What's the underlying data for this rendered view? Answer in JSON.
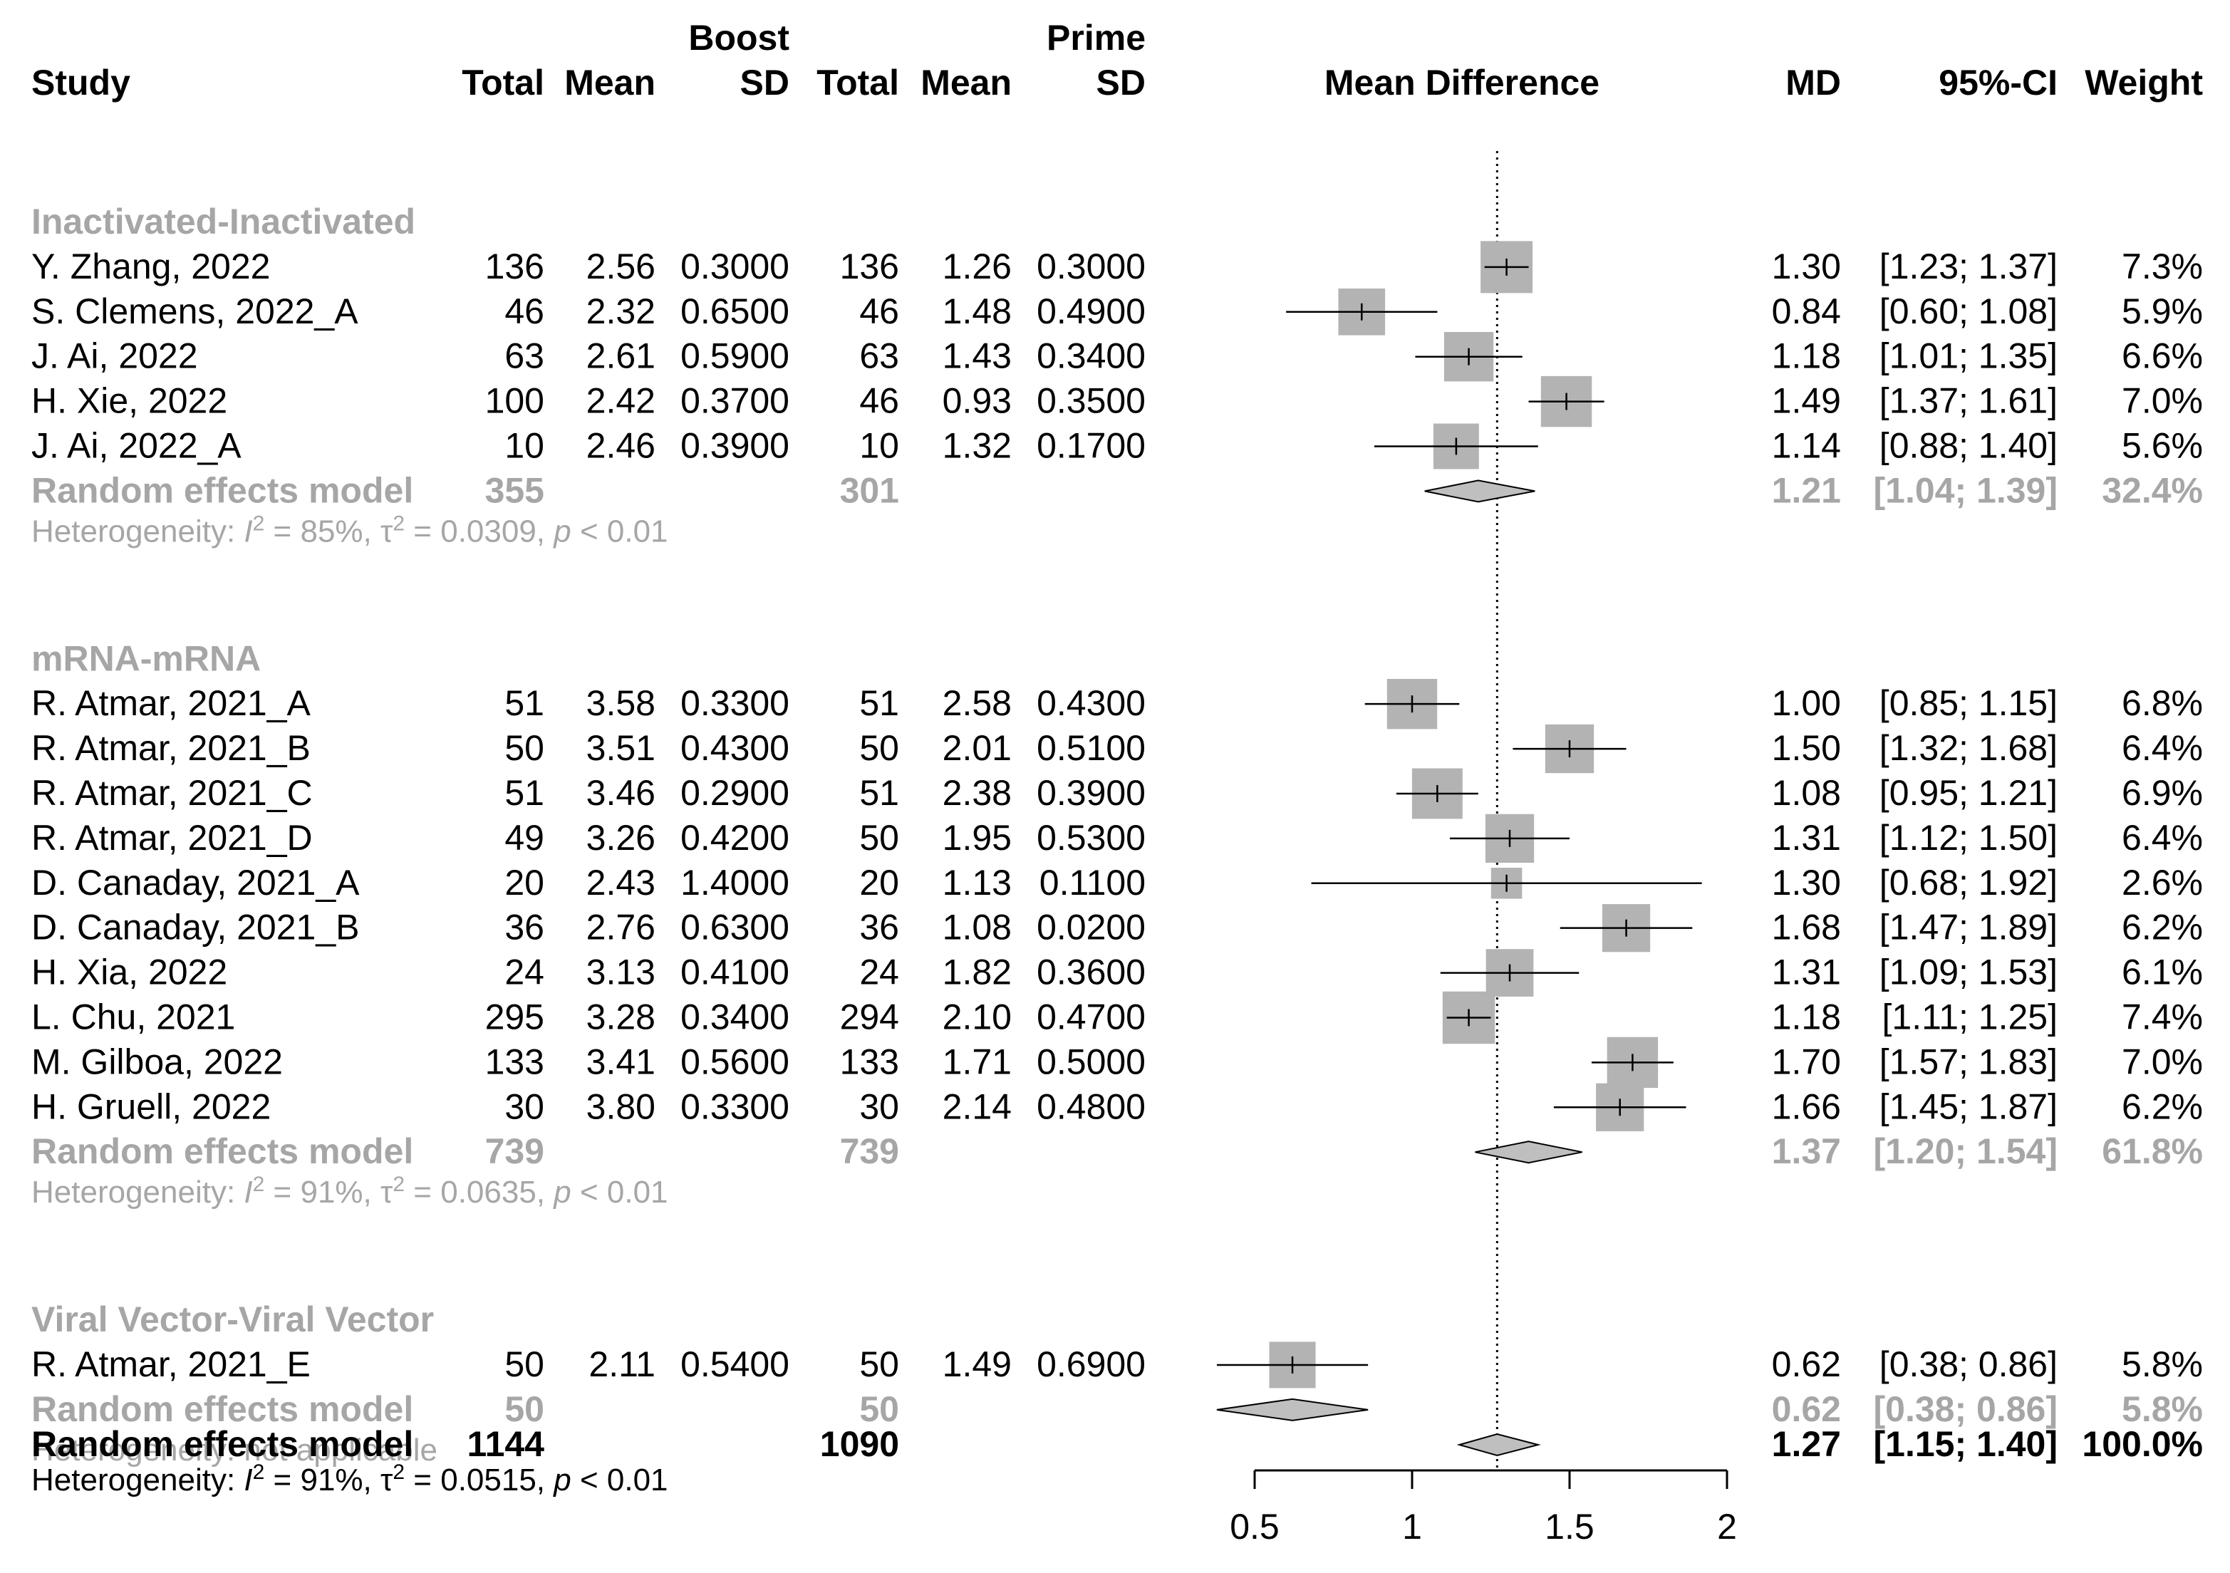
{
  "chart_data": {
    "type": "forest",
    "xlabel": "Mean Difference",
    "xlim": [
      0.5,
      2
    ],
    "xticks": [
      "0.5",
      "1",
      "1.5",
      "2"
    ],
    "reference_line": 1.27,
    "header": {
      "study": "Study",
      "group1_title": "Boost",
      "group2_title": "Prime",
      "total": "Total",
      "mean": "Mean",
      "sd": "SD",
      "md": "MD",
      "ci": "95%-CI",
      "weight": "Weight"
    },
    "subgroups": [
      {
        "name": "Inactivated-Inactivated",
        "studies": [
          {
            "study": "Y. Zhang, 2022",
            "t1": "136",
            "m1": "2.56",
            "sd1": "0.3000",
            "t2": "136",
            "m2": "1.26",
            "sd2": "0.3000",
            "md": 1.3,
            "lo": 1.23,
            "hi": 1.37,
            "md_text": "1.30",
            "ci_text": "[1.23; 1.37]",
            "weight_text": "7.3%",
            "weight": 7.3
          },
          {
            "study": "S. Clemens, 2022_A",
            "t1": "46",
            "m1": "2.32",
            "sd1": "0.6500",
            "t2": "46",
            "m2": "1.48",
            "sd2": "0.4900",
            "md": 0.84,
            "lo": 0.6,
            "hi": 1.08,
            "md_text": "0.84",
            "ci_text": "[0.60; 1.08]",
            "weight_text": "5.9%",
            "weight": 5.9
          },
          {
            "study": "J. Ai, 2022",
            "t1": "63",
            "m1": "2.61",
            "sd1": "0.5900",
            "t2": "63",
            "m2": "1.43",
            "sd2": "0.3400",
            "md": 1.18,
            "lo": 1.01,
            "hi": 1.35,
            "md_text": "1.18",
            "ci_text": "[1.01; 1.35]",
            "weight_text": "6.6%",
            "weight": 6.6
          },
          {
            "study": "H. Xie, 2022",
            "t1": "100",
            "m1": "2.42",
            "sd1": "0.3700",
            "t2": "46",
            "m2": "0.93",
            "sd2": "0.3500",
            "md": 1.49,
            "lo": 1.37,
            "hi": 1.61,
            "md_text": "1.49",
            "ci_text": "[1.37; 1.61]",
            "weight_text": "7.0%",
            "weight": 7.0
          },
          {
            "study": "J. Ai, 2022_A",
            "t1": "10",
            "m1": "2.46",
            "sd1": "0.3900",
            "t2": "10",
            "m2": "1.32",
            "sd2": "0.1700",
            "md": 1.14,
            "lo": 0.88,
            "hi": 1.4,
            "md_text": "1.14",
            "ci_text": "[0.88; 1.40]",
            "weight_text": "5.6%",
            "weight": 5.6
          }
        ],
        "pooled": {
          "label": "Random effects model",
          "t1": "355",
          "t2": "301",
          "md": 1.21,
          "lo": 1.04,
          "hi": 1.39,
          "md_text": "1.21",
          "ci_text": "[1.04; 1.39]",
          "weight_text": "32.4%"
        },
        "heterogeneity": {
          "prefix": "Heterogeneity: ",
          "i2_label": "I",
          "i2_value": " = 85%, ",
          "tau_label": "τ",
          "tau_value": " = 0.0309, ",
          "p_label": "p",
          "p_value": " < 0.01"
        }
      },
      {
        "name": "mRNA-mRNA",
        "studies": [
          {
            "study": "R. Atmar, 2021_A",
            "t1": "51",
            "m1": "3.58",
            "sd1": "0.3300",
            "t2": "51",
            "m2": "2.58",
            "sd2": "0.4300",
            "md": 1.0,
            "lo": 0.85,
            "hi": 1.15,
            "md_text": "1.00",
            "ci_text": "[0.85; 1.15]",
            "weight_text": "6.8%",
            "weight": 6.8
          },
          {
            "study": "R. Atmar, 2021_B",
            "t1": "50",
            "m1": "3.51",
            "sd1": "0.4300",
            "t2": "50",
            "m2": "2.01",
            "sd2": "0.5100",
            "md": 1.5,
            "lo": 1.32,
            "hi": 1.68,
            "md_text": "1.50",
            "ci_text": "[1.32; 1.68]",
            "weight_text": "6.4%",
            "weight": 6.4
          },
          {
            "study": "R. Atmar, 2021_C",
            "t1": "51",
            "m1": "3.46",
            "sd1": "0.2900",
            "t2": "51",
            "m2": "2.38",
            "sd2": "0.3900",
            "md": 1.08,
            "lo": 0.95,
            "hi": 1.21,
            "md_text": "1.08",
            "ci_text": "[0.95; 1.21]",
            "weight_text": "6.9%",
            "weight": 6.9
          },
          {
            "study": "R. Atmar, 2021_D",
            "t1": "49",
            "m1": "3.26",
            "sd1": "0.4200",
            "t2": "50",
            "m2": "1.95",
            "sd2": "0.5300",
            "md": 1.31,
            "lo": 1.12,
            "hi": 1.5,
            "md_text": "1.31",
            "ci_text": "[1.12; 1.50]",
            "weight_text": "6.4%",
            "weight": 6.4
          },
          {
            "study": "D. Canaday, 2021_A",
            "t1": "20",
            "m1": "2.43",
            "sd1": "1.4000",
            "t2": "20",
            "m2": "1.13",
            "sd2": "0.1100",
            "md": 1.3,
            "lo": 0.68,
            "hi": 1.92,
            "md_text": "1.30",
            "ci_text": "[0.68; 1.92]",
            "weight_text": "2.6%",
            "weight": 2.6
          },
          {
            "study": "D. Canaday, 2021_B",
            "t1": "36",
            "m1": "2.76",
            "sd1": "0.6300",
            "t2": "36",
            "m2": "1.08",
            "sd2": "0.0200",
            "md": 1.68,
            "lo": 1.47,
            "hi": 1.89,
            "md_text": "1.68",
            "ci_text": "[1.47; 1.89]",
            "weight_text": "6.2%",
            "weight": 6.2
          },
          {
            "study": "H. Xia, 2022",
            "t1": "24",
            "m1": "3.13",
            "sd1": "0.4100",
            "t2": "24",
            "m2": "1.82",
            "sd2": "0.3600",
            "md": 1.31,
            "lo": 1.09,
            "hi": 1.53,
            "md_text": "1.31",
            "ci_text": "[1.09; 1.53]",
            "weight_text": "6.1%",
            "weight": 6.1
          },
          {
            "study": "L. Chu, 2021",
            "t1": "295",
            "m1": "3.28",
            "sd1": "0.3400",
            "t2": "294",
            "m2": "2.10",
            "sd2": "0.4700",
            "md": 1.18,
            "lo": 1.11,
            "hi": 1.25,
            "md_text": "1.18",
            "ci_text": "[1.11; 1.25]",
            "weight_text": "7.4%",
            "weight": 7.4
          },
          {
            "study": "M. Gilboa, 2022",
            "t1": "133",
            "m1": "3.41",
            "sd1": "0.5600",
            "t2": "133",
            "m2": "1.71",
            "sd2": "0.5000",
            "md": 1.7,
            "lo": 1.57,
            "hi": 1.83,
            "md_text": "1.70",
            "ci_text": "[1.57; 1.83]",
            "weight_text": "7.0%",
            "weight": 7.0
          },
          {
            "study": "H. Gruell, 2022",
            "t1": "30",
            "m1": "3.80",
            "sd1": "0.3300",
            "t2": "30",
            "m2": "2.14",
            "sd2": "0.4800",
            "md": 1.66,
            "lo": 1.45,
            "hi": 1.87,
            "md_text": "1.66",
            "ci_text": "[1.45; 1.87]",
            "weight_text": "6.2%",
            "weight": 6.2
          }
        ],
        "pooled": {
          "label": "Random effects model",
          "t1": "739",
          "t2": "739",
          "md": 1.37,
          "lo": 1.2,
          "hi": 1.54,
          "md_text": "1.37",
          "ci_text": "[1.20; 1.54]",
          "weight_text": "61.8%"
        },
        "heterogeneity": {
          "prefix": "Heterogeneity: ",
          "i2_label": "I",
          "i2_value": " = 91%, ",
          "tau_label": "τ",
          "tau_value": " = 0.0635, ",
          "p_label": "p",
          "p_value": " < 0.01"
        }
      },
      {
        "name": "Viral Vector-Viral Vector",
        "studies": [
          {
            "study": "R. Atmar, 2021_E",
            "t1": "50",
            "m1": "2.11",
            "sd1": "0.5400",
            "t2": "50",
            "m2": "1.49",
            "sd2": "0.6900",
            "md": 0.62,
            "lo": 0.38,
            "hi": 0.86,
            "md_text": "0.62",
            "ci_text": "[0.38; 0.86]",
            "weight_text": "5.8%",
            "weight": 5.8
          }
        ],
        "pooled": {
          "label": "Random effects model",
          "t1": "50",
          "t2": "50",
          "md": 0.62,
          "lo": 0.38,
          "hi": 0.86,
          "md_text": "0.62",
          "ci_text": "[0.38; 0.86]",
          "weight_text": "5.8%"
        },
        "heterogeneity": {
          "text": "Heterogeneity: not applicable"
        }
      }
    ],
    "overall": {
      "label": "Random effects model",
      "t1": "1144",
      "t2": "1090",
      "md": 1.27,
      "lo": 1.15,
      "hi": 1.4,
      "md_text": "1.27",
      "ci_text": "[1.15; 1.40]",
      "weight_text": "100.0%",
      "heterogeneity": {
        "prefix": "Heterogeneity: ",
        "i2_label": "I",
        "i2_value": " = 91%, ",
        "tau_label": "τ",
        "tau_value": " = 0.0515, ",
        "p_label": "p",
        "p_value": " < 0.01"
      }
    }
  },
  "colors": {
    "grey_text": "#a6a6a6",
    "box": "#b3b3b3",
    "diamond": "#bfbfbf",
    "line": "#000000"
  }
}
